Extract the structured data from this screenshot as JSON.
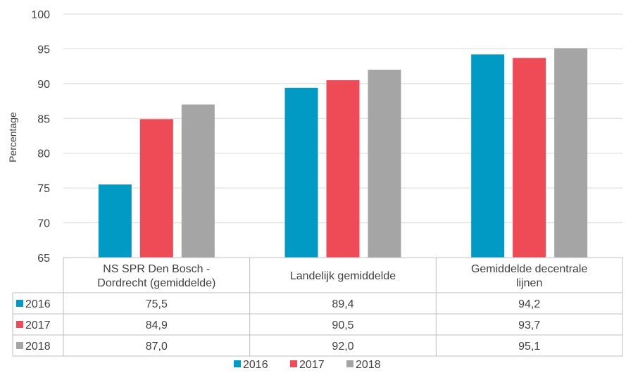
{
  "chart_data": {
    "type": "bar",
    "categories": [
      [
        "NS SPR Den Bosch -",
        "Dordrecht (gemiddelde)"
      ],
      [
        "Landelijk gemiddelde"
      ],
      [
        "Gemiddelde decentrale",
        "lijnen"
      ]
    ],
    "series": [
      {
        "name": "2016",
        "color": "#009ac4",
        "values": [
          75.5,
          89.4,
          94.2
        ],
        "labels": [
          "75,5",
          "89,4",
          "94,2"
        ]
      },
      {
        "name": "2017",
        "color": "#ef4b56",
        "values": [
          84.9,
          90.5,
          93.7
        ],
        "labels": [
          "84,9",
          "90,5",
          "93,7"
        ]
      },
      {
        "name": "2018",
        "color": "#a5a5a5",
        "values": [
          87.0,
          92.0,
          95.1
        ],
        "labels": [
          "87,0",
          "92,0",
          "95,1"
        ]
      }
    ],
    "ylabel": "Percentage",
    "ylim": [
      65,
      100
    ],
    "yticks": [
      65,
      70,
      75,
      80,
      85,
      90,
      95,
      100
    ],
    "grid": true,
    "data_table": true,
    "legend": "bottom-center"
  }
}
